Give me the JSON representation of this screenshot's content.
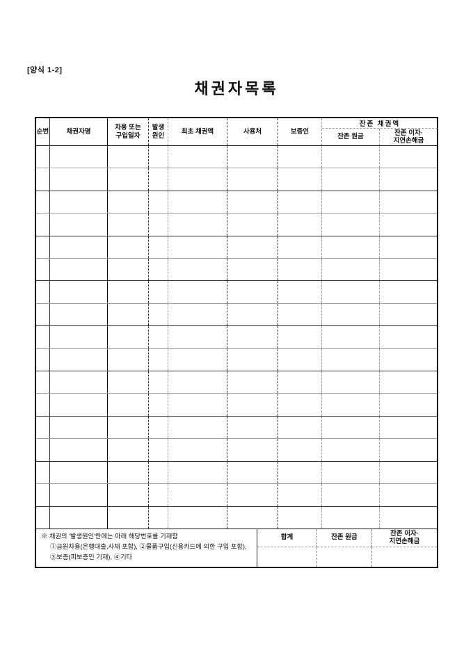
{
  "page": {
    "form_label": "[양식 1-2]",
    "title": "채권자목록"
  },
  "colors": {
    "ink": "#111111",
    "line_dark": "#2a2a2a",
    "line_light": "#9b9b9b",
    "background": "#ffffff"
  },
  "table": {
    "header": {
      "serial": "순번",
      "creditor_name": "채권자명",
      "borrow_date_l1": "차용 또는",
      "borrow_date_l2": "구입일자",
      "cause_l1": "발생",
      "cause_l2": "원인",
      "initial_amount": "최초 채권액",
      "usage": "사용처",
      "guarantor": "보증인",
      "remaining_group": "잔존 채권액",
      "remaining_principal": "잔존 원금",
      "remaining_interest_l1": "잔존 이자·",
      "remaining_interest_l2": "지연손해금"
    },
    "body": {
      "row_count": 17
    }
  },
  "footer": {
    "note_line1": "※ 채권의 '발생원인'란에는 아래 해당번호를 기재함",
    "note_line2": "①금원차용(은행대출,사채 포함), ②물품구입(신용카드에 의한 구입 포함),",
    "note_line3": "③보증(피보증인 기재), ④기타",
    "total_label": "합계",
    "principal_label": "잔존 원금",
    "interest_l1": "잔존 이자·",
    "interest_l2": "지연손해금"
  }
}
